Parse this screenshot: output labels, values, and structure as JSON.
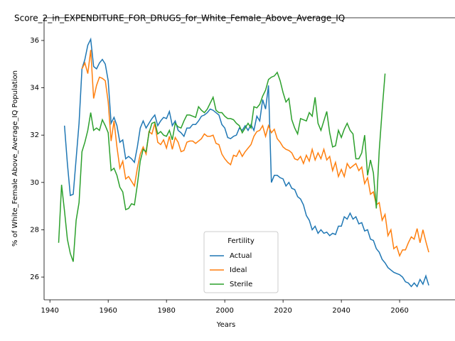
{
  "chart_data": {
    "type": "line",
    "title": "Score_2_in_EXPENDITURE_FOR_DRUGS_for_White_Female_Above_Average_IQ",
    "xlabel": "Years",
    "ylabel": "% of White_Female Above_Average_IQ Population",
    "legend_title": "Fertility",
    "legend": "lower center",
    "x": [
      1943,
      1944,
      1945,
      1946,
      1947,
      1948,
      1949,
      1950,
      1951,
      1952,
      1953,
      1954,
      1955,
      1956,
      1957,
      1958,
      1959,
      1960,
      1961,
      1962,
      1963,
      1964,
      1965,
      1966,
      1967,
      1968,
      1969,
      1970,
      1971,
      1972,
      1973,
      1974,
      1975,
      1976,
      1977,
      1978,
      1979,
      1980,
      1981,
      1982,
      1983,
      1984,
      1985,
      1986,
      1987,
      1988,
      1989,
      1990,
      1991,
      1992,
      1993,
      1994,
      1995,
      1996,
      1997,
      1998,
      1999,
      2000,
      2001,
      2002,
      2003,
      2004,
      2005,
      2006,
      2007,
      2008,
      2009,
      2010,
      2011,
      2012,
      2013,
      2014,
      2015,
      2016,
      2017,
      2018,
      2019,
      2020,
      2021,
      2022,
      2023,
      2024,
      2025,
      2026,
      2027,
      2028,
      2029,
      2030,
      2031,
      2032,
      2033,
      2034,
      2035,
      2036,
      2037,
      2038,
      2039,
      2040,
      2041,
      2042,
      2043,
      2044,
      2045,
      2046,
      2047,
      2048,
      2049,
      2050,
      2051,
      2052,
      2053,
      2054,
      2055,
      2056,
      2057,
      2058,
      2059,
      2060,
      2061,
      2062,
      2063,
      2064,
      2065,
      2066,
      2067,
      2068,
      2069,
      2070
    ],
    "series": [
      {
        "name": "Actual",
        "color": "#1f77b4",
        "values": [
          null,
          null,
          32.4,
          30.8,
          29.45,
          29.5,
          31.0,
          32.5,
          34.8,
          35.2,
          35.8,
          36.05,
          34.9,
          34.8,
          35.05,
          35.2,
          35.0,
          34.3,
          32.5,
          32.75,
          32.4,
          31.7,
          31.8,
          31.0,
          31.1,
          31.0,
          30.85,
          31.5,
          32.3,
          32.6,
          32.3,
          32.5,
          32.7,
          32.85,
          32.4,
          32.6,
          32.75,
          32.7,
          33.0,
          32.4,
          32.6,
          32.2,
          32.1,
          31.95,
          32.3,
          32.3,
          32.45,
          32.45,
          32.6,
          32.8,
          32.85,
          32.95,
          33.1,
          33.05,
          32.95,
          32.85,
          32.45,
          32.3,
          31.9,
          31.85,
          31.95,
          32.0,
          32.3,
          32.2,
          32.4,
          32.2,
          32.45,
          32.2,
          32.8,
          32.6,
          33.5,
          33.1,
          34.1,
          30.0,
          30.3,
          30.3,
          30.2,
          30.15,
          29.85,
          30.0,
          29.75,
          29.7,
          29.4,
          29.3,
          29.05,
          28.6,
          28.4,
          28.0,
          28.15,
          27.85,
          28.0,
          27.85,
          27.9,
          27.75,
          27.85,
          27.8,
          28.15,
          28.15,
          28.55,
          28.45,
          28.7,
          28.45,
          28.55,
          28.25,
          28.3,
          27.95,
          28.0,
          27.6,
          27.55,
          27.2,
          27.05,
          26.75,
          26.6,
          26.4,
          26.3,
          26.2,
          26.15,
          26.1,
          26.0,
          25.8,
          25.75,
          25.6,
          25.75,
          25.6,
          25.9,
          25.7,
          26.05,
          25.65
        ]
      },
      {
        "name": "Ideal",
        "color": "#ff7f0e",
        "values": [
          null,
          null,
          null,
          null,
          null,
          null,
          null,
          null,
          34.8,
          35.05,
          34.6,
          35.6,
          33.55,
          34.1,
          34.45,
          34.4,
          34.3,
          33.4,
          31.75,
          32.6,
          31.5,
          30.6,
          30.9,
          30.15,
          30.25,
          30.05,
          29.85,
          30.6,
          31.2,
          31.5,
          31.2,
          32.15,
          32.05,
          32.5,
          31.7,
          31.6,
          31.8,
          31.45,
          31.95,
          31.4,
          31.9,
          31.7,
          31.3,
          31.35,
          31.7,
          31.75,
          31.75,
          31.65,
          31.75,
          31.85,
          32.05,
          31.95,
          31.95,
          32.0,
          31.65,
          31.6,
          31.2,
          31.0,
          30.85,
          30.75,
          31.15,
          31.1,
          31.35,
          31.1,
          31.3,
          31.45,
          31.6,
          31.95,
          32.15,
          32.2,
          32.4,
          31.95,
          32.4,
          32.1,
          32.25,
          31.85,
          31.7,
          31.5,
          31.4,
          31.35,
          31.25,
          31.0,
          30.95,
          31.1,
          30.8,
          31.15,
          30.9,
          31.4,
          30.95,
          31.25,
          31.0,
          31.4,
          30.95,
          31.1,
          30.5,
          30.85,
          30.25,
          30.55,
          30.25,
          30.8,
          30.6,
          30.7,
          30.8,
          30.5,
          30.65,
          29.95,
          30.2,
          29.5,
          29.6,
          29.05,
          29.15,
          28.4,
          28.65,
          27.75,
          28.0,
          27.2,
          27.3,
          26.9,
          27.15,
          27.15,
          27.45,
          27.7,
          27.6,
          28.05,
          27.45,
          28.0,
          27.5,
          27.05
        ]
      },
      {
        "name": "Sterile",
        "color": "#2ca02c",
        "values": [
          27.45,
          29.9,
          28.8,
          27.6,
          27.0,
          26.65,
          28.4,
          29.15,
          31.3,
          31.7,
          32.2,
          32.95,
          32.2,
          32.3,
          32.2,
          32.65,
          32.4,
          32.1,
          30.5,
          30.6,
          30.3,
          29.8,
          29.6,
          28.85,
          28.9,
          29.1,
          29.05,
          29.9,
          30.9,
          31.4,
          31.3,
          32.1,
          32.5,
          32.55,
          32.05,
          32.15,
          32.0,
          31.95,
          32.2,
          31.8,
          32.5,
          32.35,
          32.3,
          32.6,
          32.85,
          32.85,
          32.8,
          32.75,
          33.2,
          33.05,
          32.95,
          33.1,
          33.35,
          33.6,
          33.05,
          32.95,
          32.95,
          32.8,
          32.7,
          32.7,
          32.65,
          32.5,
          32.4,
          32.1,
          32.3,
          32.5,
          32.3,
          33.2,
          33.15,
          33.3,
          33.65,
          33.9,
          34.35,
          34.45,
          34.5,
          34.65,
          34.3,
          33.8,
          33.4,
          33.55,
          32.65,
          32.3,
          32.05,
          32.7,
          32.65,
          32.6,
          32.95,
          32.8,
          33.6,
          32.5,
          32.2,
          32.6,
          33.0,
          32.1,
          31.5,
          31.55,
          32.2,
          31.9,
          32.25,
          32.5,
          32.2,
          32.05,
          31.0,
          31.0,
          31.25,
          32.0,
          30.3,
          30.95,
          30.4,
          28.9,
          31.35,
          33.05,
          34.6,
          null,
          null,
          null,
          null,
          null,
          null,
          null,
          null,
          null,
          null,
          null,
          null,
          null,
          null,
          null
        ]
      }
    ],
    "xlim": [
      1938,
      2079
    ],
    "xticks": [
      1940,
      1960,
      1980,
      2000,
      2020,
      2040,
      2060
    ],
    "ylim": [
      25.04,
      36.96
    ],
    "yticks": [
      26,
      28,
      30,
      32,
      34,
      36
    ],
    "grid": false
  }
}
